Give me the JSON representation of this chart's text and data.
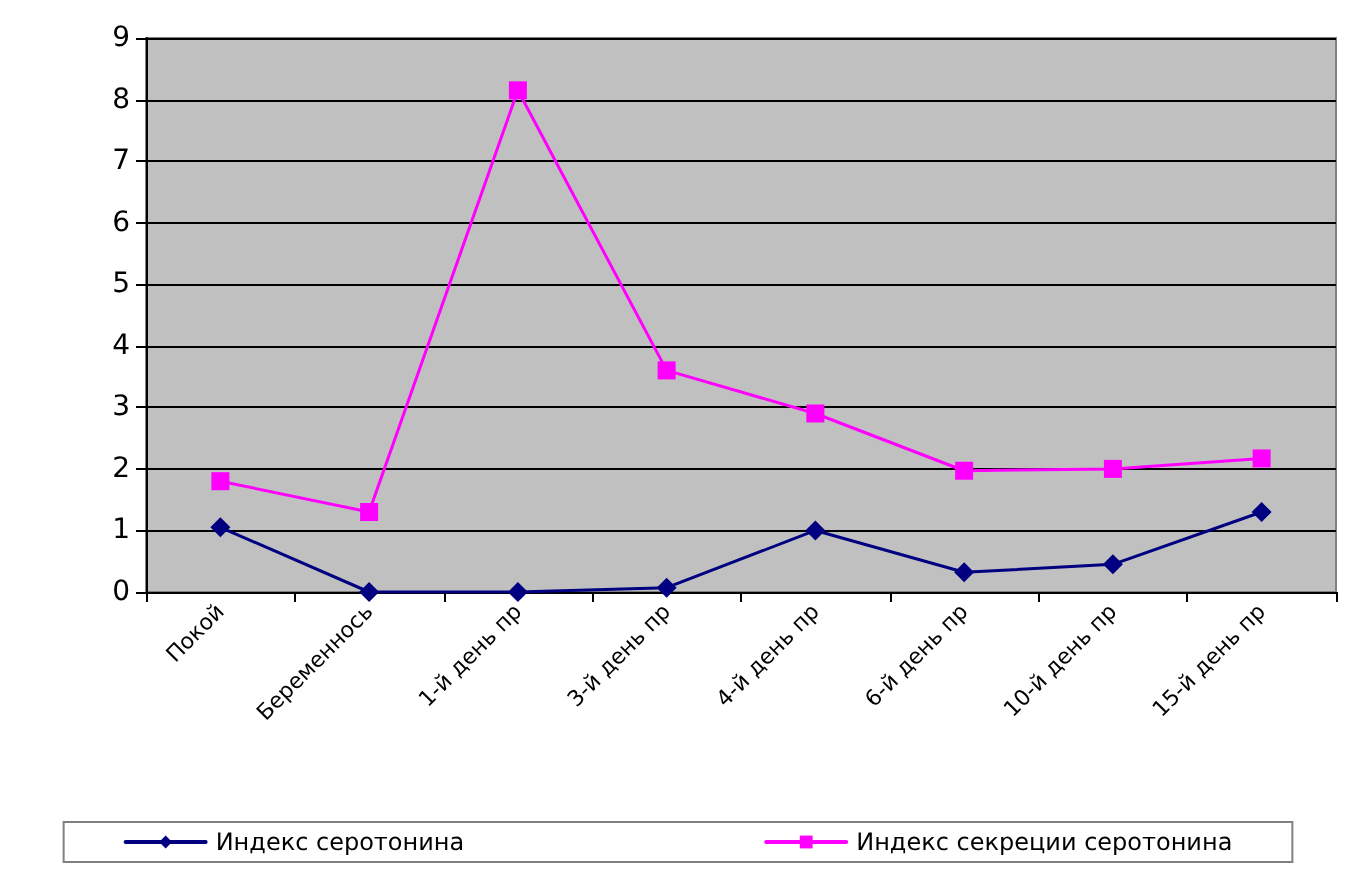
{
  "chart_data": {
    "type": "line",
    "categories": [
      "Покой",
      "Беременнось",
      "1-й день пр",
      "3-й день пр",
      "4-й день пр",
      "6-й день пр",
      "10-й день пр",
      "15-й день пр"
    ],
    "series": [
      {
        "name": "Индекс серотонина",
        "color": "#000080",
        "marker": "diamond",
        "values": [
          1.05,
          0,
          0,
          0.07,
          1.0,
          0.32,
          0.45,
          1.3
        ]
      },
      {
        "name": "Индекс секреции серотонина",
        "color": "#ff00ff",
        "marker": "square",
        "values": [
          1.8,
          1.3,
          8.15,
          3.6,
          2.9,
          1.97,
          2.0,
          2.17
        ]
      }
    ],
    "ylim": [
      0,
      9
    ],
    "yticks": [
      0,
      1,
      2,
      3,
      4,
      5,
      6,
      7,
      8,
      9
    ],
    "grid": "y",
    "legend": "bottom",
    "line_style": "solid"
  }
}
